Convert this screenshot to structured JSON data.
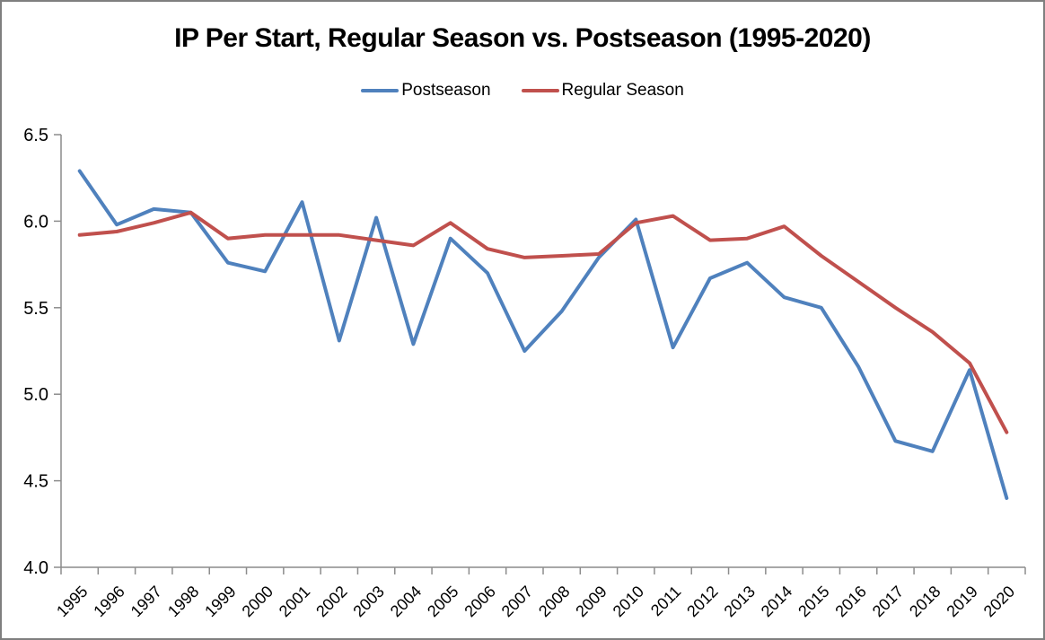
{
  "title": "IP Per Start, Regular Season vs. Postseason (1995-2020)",
  "colors": {
    "postseason": "#4F81BD",
    "regular_season": "#C0504D",
    "axis": "#8C8C8C",
    "tick_label": "#000000",
    "frame_border": "#7F7F7F",
    "background": "#FFFFFF"
  },
  "legend": {
    "items": [
      "Postseason",
      "Regular Season"
    ]
  },
  "chart_data": {
    "type": "line",
    "title": "IP Per Start, Regular Season vs. Postseason (1995-2020)",
    "categories": [
      "1995",
      "1996",
      "1997",
      "1998",
      "1999",
      "2000",
      "2001",
      "2002",
      "2003",
      "2004",
      "2005",
      "2006",
      "2007",
      "2008",
      "2009",
      "2010",
      "2011",
      "2012",
      "2013",
      "2014",
      "2015",
      "2016",
      "2017",
      "2018",
      "2019",
      "2020"
    ],
    "series": [
      {
        "name": "Postseason",
        "color": "#4F81BD",
        "values": [
          6.29,
          5.98,
          6.07,
          6.05,
          5.76,
          5.71,
          6.11,
          5.31,
          6.02,
          5.29,
          5.9,
          5.7,
          5.25,
          5.48,
          5.79,
          6.01,
          5.27,
          5.67,
          5.76,
          5.56,
          5.5,
          5.16,
          4.73,
          4.67,
          5.14,
          4.4
        ]
      },
      {
        "name": "Regular Season",
        "color": "#C0504D",
        "values": [
          5.92,
          5.94,
          5.99,
          6.05,
          5.9,
          5.92,
          5.92,
          5.92,
          5.89,
          5.86,
          5.99,
          5.84,
          5.79,
          5.8,
          5.81,
          5.99,
          6.03,
          5.89,
          5.9,
          5.97,
          5.8,
          5.65,
          5.5,
          5.36,
          5.18,
          4.78
        ]
      }
    ],
    "xlabel": "",
    "ylabel": "",
    "ylim": [
      4.0,
      6.5
    ],
    "y_ticks": [
      "6.5",
      "6.0",
      "5.5",
      "5.0",
      "4.5",
      "4.0"
    ],
    "grid": false,
    "legend_position": "top"
  }
}
